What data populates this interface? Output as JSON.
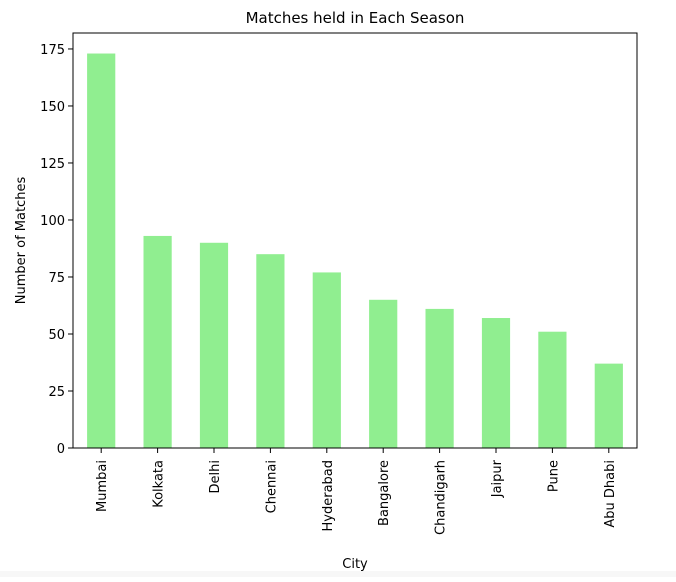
{
  "chart_data": {
    "type": "bar",
    "title": "Matches held in Each Season",
    "xlabel": "City",
    "ylabel": "Number of Matches",
    "categories": [
      "Mumbai",
      "Kolkata",
      "Delhi",
      "Chennai",
      "Hyderabad",
      "Bangalore",
      "Chandigarh",
      "Jaipur",
      "Pune",
      "Abu Dhabi"
    ],
    "values": [
      173,
      93,
      90,
      85,
      77,
      65,
      61,
      57,
      51,
      37
    ],
    "ylim": [
      0,
      182
    ],
    "yticks": [
      0,
      25,
      50,
      75,
      100,
      125,
      150,
      175
    ],
    "bar_color": "#90ee90",
    "grid": false,
    "legend": "none"
  }
}
